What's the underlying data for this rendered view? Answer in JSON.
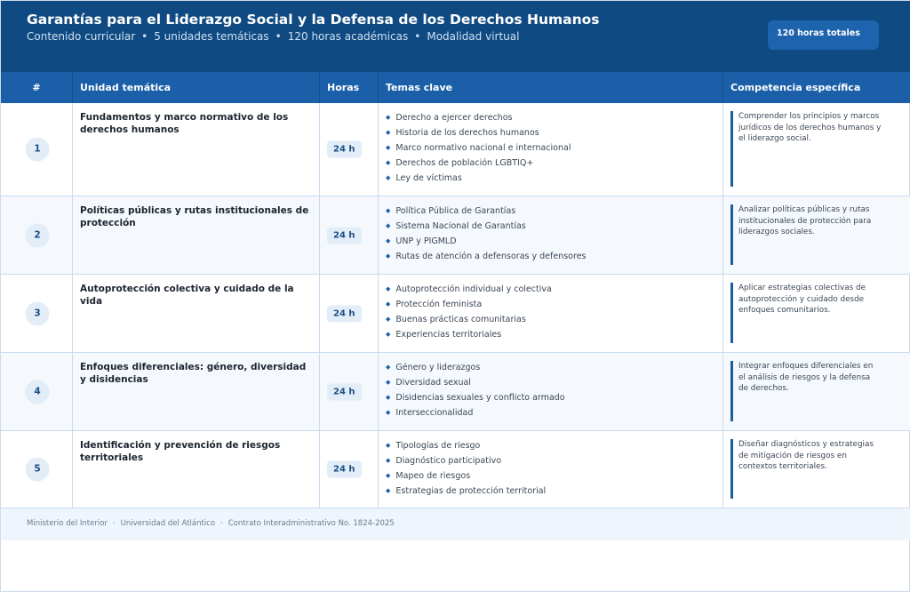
{
  "header": {
    "title": "Garantías para el Liderazgo Social y la Defensa de los Derechos Humanos",
    "subtitle": [
      "Contenido curricular",
      "5 unidades temáticas",
      "120 horas académicas",
      "Modalidad virtual"
    ],
    "separator": "•",
    "total_badge": "120 horas totales"
  },
  "columns": [
    "#",
    "Unidad temática",
    "Horas",
    "Temas clave",
    "Competencia específica"
  ],
  "rows": [
    {
      "num": "1",
      "unit": "Fundamentos y marco normativo de los derechos humanos",
      "hours": "24 h",
      "topics": [
        "Derecho a ejercer derechos",
        "Historia de los derechos humanos",
        "Marco normativo nacional e internacional",
        "Derechos de población LGBTIQ+",
        "Ley de víctimas"
      ],
      "competence": "Comprender los principios y marcos jurídicos de los derechos humanos y el liderazgo social."
    },
    {
      "num": "2",
      "unit": "Políticas públicas y rutas institucionales de protección",
      "hours": "24 h",
      "topics": [
        "Política Pública de Garantías",
        "Sistema Nacional de Garantías",
        "UNP y PIGMLD",
        "Rutas de atención a defensoras y defensores"
      ],
      "competence": "Analizar políticas públicas y rutas institucionales de protección para liderazgos sociales."
    },
    {
      "num": "3",
      "unit": "Autoprotección colectiva y cuidado de la vida",
      "hours": "24 h",
      "topics": [
        "Autoprotección individual y colectiva",
        "Protección feminista",
        "Buenas prácticas comunitarias",
        "Experiencias territoriales"
      ],
      "competence": "Aplicar estrategias colectivas de autoprotección y cuidado desde enfoques comunitarios."
    },
    {
      "num": "4",
      "unit": "Enfoques diferenciales: género, diversidad y disidencias",
      "hours": "24 h",
      "topics": [
        "Género y liderazgos",
        "Diversidad sexual",
        "Disidencias sexuales y conflicto armado",
        "Interseccionalidad"
      ],
      "competence": "Integrar enfoques diferenciales en el análisis de riesgos y la defensa de derechos."
    },
    {
      "num": "5",
      "unit": "Identificación y prevención de riesgos territoriales",
      "hours": "24 h",
      "topics": [
        "Tipologías de riesgo",
        "Diagnóstico participativo",
        "Mapeo de riesgos",
        "Estrategias de protección territorial"
      ],
      "competence": "Diseñar diagnósticos y estrategias de mitigación de riesgos en contextos territoriales."
    }
  ],
  "footer": {
    "items": [
      "Ministerio del Interior",
      "Universidad del Atlántico",
      "Contrato Interadministrativo No. 1824-2025"
    ],
    "separator": "·"
  },
  "colors": {
    "header": "#0f4a82",
    "table_header": "#1a5fa8",
    "accent": "#1d5c9e"
  }
}
